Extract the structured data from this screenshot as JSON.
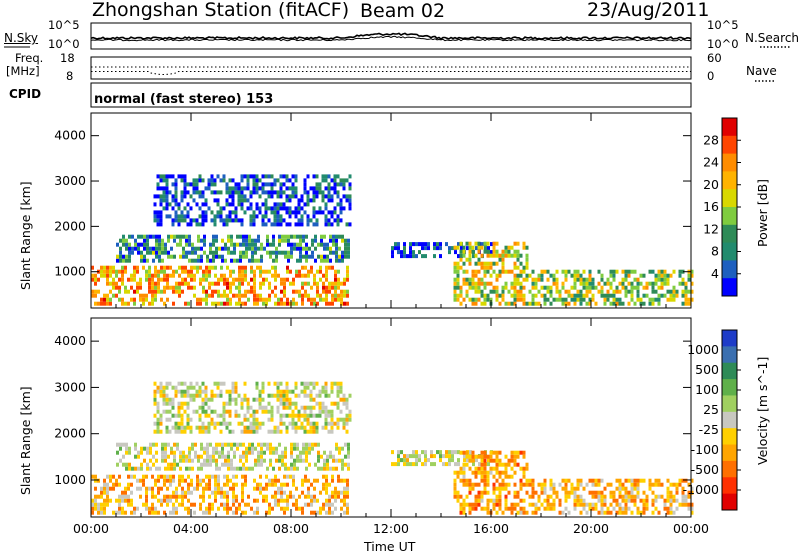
{
  "header": {
    "station": "Zhongshan Station (fitACF)",
    "beam": "Beam 02",
    "date": "23/Aug/2011"
  },
  "noise_panel": {
    "left_label": "N.Sky",
    "right_label": "N.Search",
    "left_ticks": [
      "10^5",
      "10^0"
    ],
    "right_ticks": [
      "10^5",
      "10^0"
    ]
  },
  "freq_panel": {
    "left_label_1": "Freq.",
    "left_label_2": "[MHz]",
    "left_ticks": [
      "18",
      "8"
    ],
    "right_label": "Nave",
    "right_ticks": [
      "60",
      "0"
    ]
  },
  "cpid": {
    "label": "CPID",
    "value": "normal (fast stereo) 153"
  },
  "chart_data": [
    {
      "type": "heatmap",
      "panel": "power",
      "ylabel": "Slant Range [km]",
      "xlabel": "",
      "ylim": [
        200,
        4500
      ],
      "xlim_hours": [
        0,
        24
      ],
      "x_ticks": [
        "00:00",
        "04:00",
        "08:00",
        "12:00",
        "16:00",
        "20:00",
        "00:00"
      ],
      "y_ticks": [
        "1000",
        "2000",
        "3000",
        "4000"
      ],
      "colorbar": {
        "label": "Power [dB]",
        "ticks": [
          "28",
          "24",
          "20",
          "16",
          "12",
          "8",
          "4"
        ],
        "colors": [
          "#e00000",
          "#ff4500",
          "#ff8c00",
          "#ffb300",
          "#d8d800",
          "#7fcc3f",
          "#2e8b57",
          "#228b6e",
          "#1d5fbf",
          "#0000ff"
        ]
      },
      "regions": [
        {
          "t0": 0.0,
          "t1": 10.3,
          "r0": 250,
          "r1": 1100,
          "value": 22
        },
        {
          "t0": 1.0,
          "t1": 10.3,
          "r0": 1200,
          "r1": 1800,
          "value": 10
        },
        {
          "t0": 2.5,
          "t1": 10.3,
          "r0": 2000,
          "r1": 3100,
          "value": 6
        },
        {
          "t0": 12.0,
          "t1": 16.0,
          "r0": 1300,
          "r1": 1600,
          "value": 5
        },
        {
          "t0": 14.5,
          "t1": 17.5,
          "r0": 250,
          "r1": 1600,
          "value": 18
        },
        {
          "t0": 17.5,
          "t1": 24.0,
          "r0": 250,
          "r1": 1000,
          "value": 16
        }
      ]
    },
    {
      "type": "heatmap",
      "panel": "velocity",
      "ylabel": "Slant Range [km]",
      "xlabel": "Time UT",
      "ylim": [
        200,
        4500
      ],
      "xlim_hours": [
        0,
        24
      ],
      "x_ticks": [
        "00:00",
        "04:00",
        "08:00",
        "12:00",
        "16:00",
        "20:00",
        "00:00"
      ],
      "y_ticks": [
        "1000",
        "2000",
        "3000",
        "4000"
      ],
      "colorbar": {
        "label": "Velocity [m s^-1]",
        "ticks": [
          "1000",
          "500",
          "100",
          "25",
          "-25",
          "-100",
          "-500",
          "-1000"
        ],
        "colors": [
          "#1e3cc8",
          "#3a6fb0",
          "#2e8b57",
          "#5fb04a",
          "#a0d060",
          "#c8c8c0",
          "#ffd000",
          "#ffa500",
          "#ff7000",
          "#ff3000",
          "#e00000"
        ]
      },
      "regions": [
        {
          "t0": 0.0,
          "t1": 10.3,
          "r0": 250,
          "r1": 1100,
          "value": -300
        },
        {
          "t0": 1.0,
          "t1": 10.3,
          "r0": 1200,
          "r1": 1800,
          "value": 0
        },
        {
          "t0": 2.5,
          "t1": 10.3,
          "r0": 2000,
          "r1": 3100,
          "value": 10
        },
        {
          "t0": 12.0,
          "t1": 16.0,
          "r0": 1300,
          "r1": 1600,
          "value": 0
        },
        {
          "t0": 14.5,
          "t1": 17.5,
          "r0": 250,
          "r1": 1600,
          "value": -400
        },
        {
          "t0": 17.5,
          "t1": 24.0,
          "r0": 250,
          "r1": 1000,
          "value": -300
        }
      ]
    }
  ]
}
